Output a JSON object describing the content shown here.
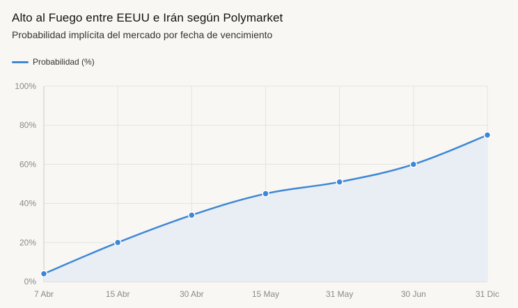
{
  "header": {
    "title": "Alto al Fuego entre EEUU e Irán según Polymarket",
    "subtitle": "Probabilidad implícita del mercado por fecha de vencimiento"
  },
  "legend": {
    "label": "Probabilidad (%)"
  },
  "colors": {
    "line": "#3d87d6",
    "area": "#e9eef4",
    "grid": "#e3e3e0",
    "axis": "#c9c9c6"
  },
  "chart_data": {
    "type": "area",
    "categories": [
      "7 Abr",
      "15 Abr",
      "30 Abr",
      "15 May",
      "31 May",
      "30 Jun",
      "31 Dic"
    ],
    "series": [
      {
        "name": "Probabilidad (%)",
        "values": [
          4,
          20,
          34,
          45,
          51,
          60,
          75
        ]
      }
    ],
    "ylim": [
      0,
      100
    ],
    "yticks": [
      0,
      20,
      40,
      60,
      80,
      100
    ],
    "ytick_labels": [
      "0%",
      "20%",
      "40%",
      "60%",
      "80%",
      "100%"
    ],
    "grid": true,
    "legend_position": "top-left"
  }
}
